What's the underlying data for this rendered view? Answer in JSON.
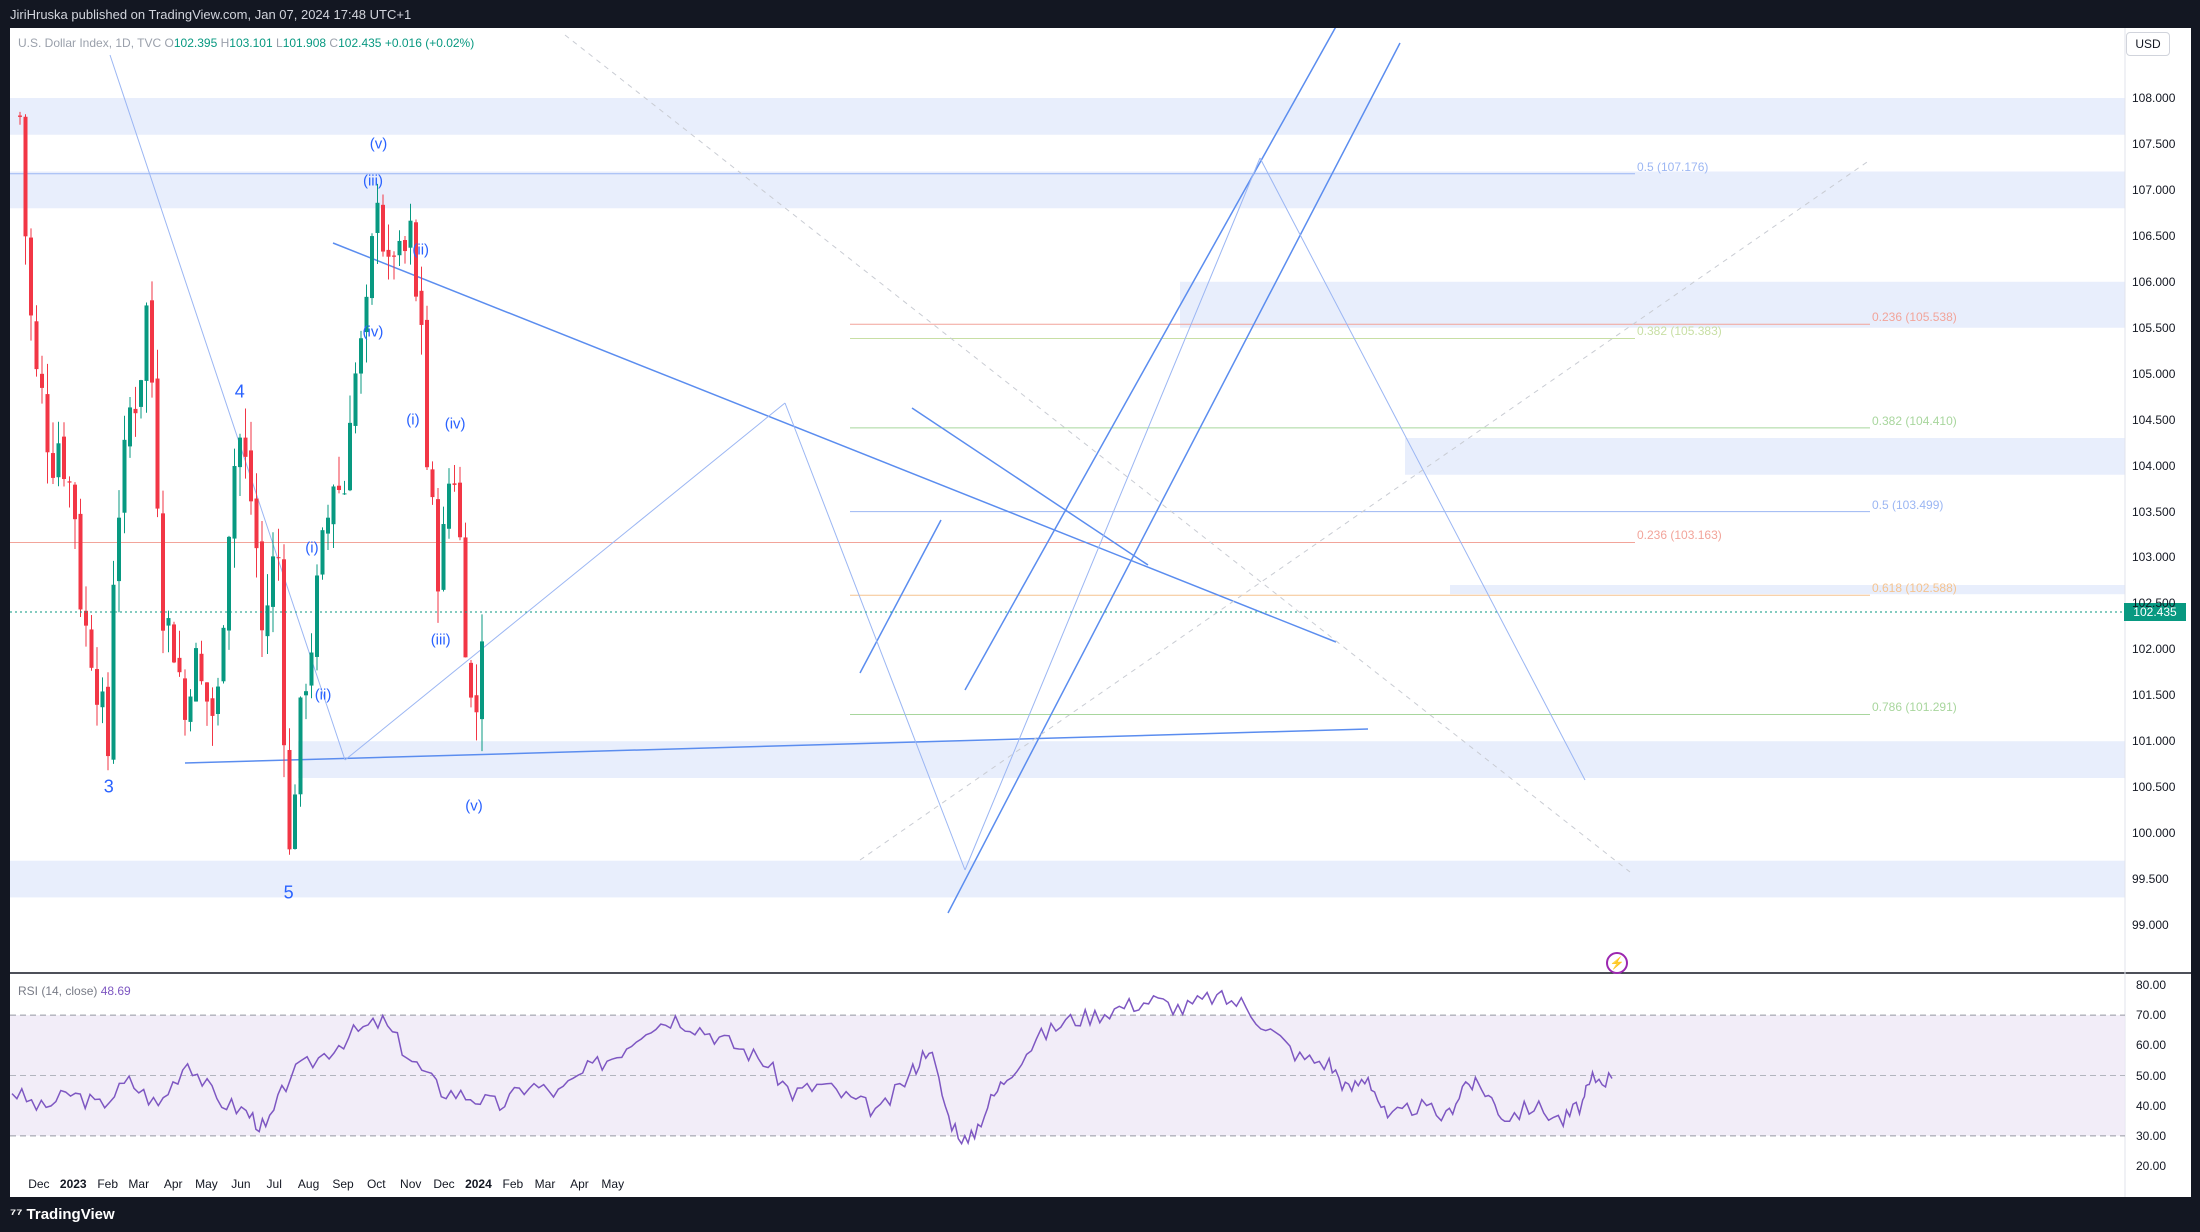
{
  "header": {
    "published": "JiriHruska published on TradingView.com, Jan 07, 2024 17:48 UTC+1",
    "symbol": "U.S. Dollar Index, 1D, TVC",
    "ohlc": {
      "o_label": "O",
      "o": "102.395",
      "h_label": "H",
      "h": "103.101",
      "l_label": "L",
      "l": "101.908",
      "c_label": "C",
      "c": "102.435"
    },
    "change": "+0.016 (+0.02%)"
  },
  "currency": "USD",
  "last_price": "102.435",
  "footer": {
    "brand": "TradingView"
  },
  "colors": {
    "up": "#089981",
    "down": "#f23645",
    "accent": "#2962ff",
    "rsi": "#7e57c2",
    "zone": "#e8eefc"
  },
  "chart_data": {
    "type": "candlestick",
    "price_axis": {
      "min": 98.7,
      "max": 108.7,
      "ticks": [
        "108.000",
        "107.500",
        "107.000",
        "106.500",
        "106.000",
        "105.500",
        "105.000",
        "104.500",
        "104.000",
        "103.500",
        "103.000",
        "102.500",
        "102.000",
        "101.500",
        "101.000",
        "100.500",
        "100.000",
        "99.500",
        "99.000"
      ]
    },
    "time_axis": {
      "labels": [
        "Dec",
        "2023",
        "Feb",
        "Mar",
        "Apr",
        "May",
        "Jun",
        "Jul",
        "Aug",
        "Sep",
        "Oct",
        "Nov",
        "Dec",
        "2024",
        "Feb",
        "Mar",
        "Apr",
        "May"
      ]
    },
    "price_path": [
      [
        "2022-11-14",
        107.8
      ],
      [
        "2022-11-21",
        106.0
      ],
      [
        "2022-11-28",
        105.0
      ],
      [
        "2022-12-05",
        104.7
      ],
      [
        "2022-12-12",
        104.0
      ],
      [
        "2022-12-19",
        104.3
      ],
      [
        "2022-12-26",
        103.9
      ],
      [
        "2023-01-02",
        103.6
      ],
      [
        "2023-01-09",
        102.3
      ],
      [
        "2023-01-16",
        102.1
      ],
      [
        "2023-01-23",
        101.6
      ],
      [
        "2023-01-30",
        101.1
      ],
      [
        "2023-02-02",
        100.8
      ],
      [
        "2023-02-07",
        103.2
      ],
      [
        "2023-02-14",
        103.8
      ],
      [
        "2023-02-21",
        104.6
      ],
      [
        "2023-03-01",
        104.8
      ],
      [
        "2023-03-08",
        105.7
      ],
      [
        "2023-03-15",
        104.6
      ],
      [
        "2023-03-22",
        102.5
      ],
      [
        "2023-03-29",
        102.2
      ],
      [
        "2023-04-05",
        101.9
      ],
      [
        "2023-04-12",
        101.2
      ],
      [
        "2023-04-19",
        102.0
      ],
      [
        "2023-04-26",
        101.6
      ],
      [
        "2023-05-03",
        101.4
      ],
      [
        "2023-05-10",
        101.2
      ],
      [
        "2023-05-17",
        102.6
      ],
      [
        "2023-05-24",
        103.9
      ],
      [
        "2023-05-31",
        104.3
      ],
      [
        "2023-06-07",
        103.9
      ],
      [
        "2023-06-14",
        103.3
      ],
      [
        "2023-06-21",
        102.0
      ],
      [
        "2023-06-28",
        102.9
      ],
      [
        "2023-07-05",
        103.0
      ],
      [
        "2023-07-12",
        100.4
      ],
      [
        "2023-07-14",
        99.6
      ],
      [
        "2023-07-21",
        100.8
      ],
      [
        "2023-07-28",
        101.6
      ],
      [
        "2023-08-04",
        102.1
      ],
      [
        "2023-08-11",
        102.9
      ],
      [
        "2023-08-18",
        103.4
      ],
      [
        "2023-08-25",
        104.0
      ],
      [
        "2023-09-01",
        103.5
      ],
      [
        "2023-09-08",
        104.8
      ],
      [
        "2023-09-15",
        105.1
      ],
      [
        "2023-09-22",
        105.6
      ],
      [
        "2023-09-29",
        106.6
      ],
      [
        "2023-10-03",
        107.2
      ],
      [
        "2023-10-10",
        105.9
      ],
      [
        "2023-10-17",
        106.4
      ],
      [
        "2023-10-24",
        106.1
      ],
      [
        "2023-10-31",
        106.6
      ],
      [
        "2023-11-07",
        105.6
      ],
      [
        "2023-11-10",
        105.9
      ],
      [
        "2023-11-14",
        104.2
      ],
      [
        "2023-11-21",
        103.4
      ],
      [
        "2023-11-28",
        102.6
      ],
      [
        "2023-12-01",
        103.3
      ],
      [
        "2023-12-07",
        104.0
      ],
      [
        "2023-12-12",
        103.9
      ],
      [
        "2023-12-19",
        102.4
      ],
      [
        "2023-12-26",
        101.3
      ],
      [
        "2023-12-28",
        100.9
      ],
      [
        "2024-01-02",
        101.9
      ],
      [
        "2024-01-05",
        102.4
      ]
    ],
    "zones": [
      [
        107.6,
        108.0
      ],
      [
        106.8,
        107.2
      ],
      [
        105.5,
        106.0
      ],
      [
        103.9,
        104.3
      ],
      [
        102.6,
        102.7
      ],
      [
        100.6,
        101.0
      ],
      [
        99.3,
        99.7
      ]
    ],
    "fibonacci": [
      {
        "label": "0.5 (107.176)",
        "price": 107.176,
        "color": "#9bb6f3"
      },
      {
        "label": "0.236 (105.538)",
        "price": 105.538,
        "color": "#f2a49a"
      },
      {
        "label": "0.382 (105.383)",
        "price": 105.383,
        "color": "#c8dfa4"
      },
      {
        "label": "0.382 (104.410)",
        "price": 104.41,
        "color": "#a8d69d"
      },
      {
        "label": "0.5 (103.499)",
        "price": 103.499,
        "color": "#9bb6f3"
      },
      {
        "label": "0.236 (103.163)",
        "price": 103.163,
        "color": "#f2a49a"
      },
      {
        "label": "0.618 (102.588)",
        "price": 102.588,
        "color": "#f5c38f"
      },
      {
        "label": "0.786 (101.291)",
        "price": 101.291,
        "color": "#a8d69d"
      }
    ],
    "wave_labels": [
      {
        "text": "3",
        "date": "2023-02-02",
        "price": 100.5,
        "big": true
      },
      {
        "text": "4",
        "date": "2023-05-31",
        "price": 104.8,
        "big": true
      },
      {
        "text": "5",
        "date": "2023-07-14",
        "price": 99.35,
        "big": true
      },
      {
        "text": "(i)",
        "date": "2023-08-04",
        "price": 103.1
      },
      {
        "text": "(ii)",
        "date": "2023-08-14",
        "price": 101.5
      },
      {
        "text": "(iii)",
        "date": "2023-09-28",
        "price": 107.1
      },
      {
        "text": "(iv)",
        "date": "2023-09-28",
        "price": 105.45
      },
      {
        "text": "(v)",
        "date": "2023-10-03",
        "price": 107.5
      },
      {
        "text": "(i)",
        "date": "2023-11-03",
        "price": 104.5
      },
      {
        "text": "(ii)",
        "date": "2023-11-10",
        "price": 106.35
      },
      {
        "text": "(iii)",
        "date": "2023-11-28",
        "price": 102.1
      },
      {
        "text": "(iv)",
        "date": "2023-12-11",
        "price": 104.45
      },
      {
        "text": "(v)",
        "date": "2023-12-28",
        "price": 100.3
      }
    ],
    "rsi": {
      "label": "RSI (14, close)",
      "value": "48.69",
      "axis_ticks": [
        "80.00",
        "70.00",
        "60.00",
        "50.00",
        "40.00",
        "30.00",
        "20.00"
      ],
      "band": [
        30,
        70
      ],
      "path": [
        [
          0,
          45
        ],
        [
          30,
          39
        ],
        [
          60,
          44
        ],
        [
          90,
          40
        ],
        [
          120,
          48
        ],
        [
          150,
          40
        ],
        [
          180,
          55
        ],
        [
          210,
          42
        ],
        [
          240,
          38
        ],
        [
          260,
          32
        ],
        [
          285,
          50
        ],
        [
          320,
          57
        ],
        [
          350,
          64
        ],
        [
          380,
          68
        ],
        [
          410,
          55
        ],
        [
          440,
          45
        ],
        [
          470,
          43
        ],
        [
          500,
          40
        ],
        [
          530,
          47
        ],
        [
          560,
          44
        ],
        [
          590,
          52
        ],
        [
          620,
          57
        ],
        [
          650,
          66
        ],
        [
          680,
          69
        ],
        [
          710,
          65
        ],
        [
          740,
          60
        ],
        [
          770,
          55
        ],
        [
          800,
          44
        ],
        [
          830,
          47
        ],
        [
          860,
          42
        ],
        [
          890,
          38
        ],
        [
          920,
          50
        ],
        [
          940,
          60
        ],
        [
          960,
          36
        ],
        [
          980,
          27
        ],
        [
          1000,
          40
        ],
        [
          1020,
          50
        ],
        [
          1050,
          62
        ],
        [
          1080,
          68
        ],
        [
          1110,
          70
        ],
        [
          1140,
          73
        ],
        [
          1170,
          75
        ],
        [
          1200,
          72
        ],
        [
          1230,
          76
        ],
        [
          1260,
          74
        ],
        [
          1290,
          65
        ],
        [
          1320,
          56
        ],
        [
          1350,
          54
        ],
        [
          1370,
          45
        ],
        [
          1390,
          50
        ],
        [
          1410,
          35
        ],
        [
          1440,
          40
        ],
        [
          1470,
          36
        ],
        [
          1490,
          48
        ],
        [
          1510,
          45
        ],
        [
          1530,
          36
        ],
        [
          1560,
          40
        ],
        [
          1590,
          35
        ],
        [
          1610,
          41
        ],
        [
          1620,
          49
        ],
        [
          1640,
          49
        ]
      ]
    }
  }
}
